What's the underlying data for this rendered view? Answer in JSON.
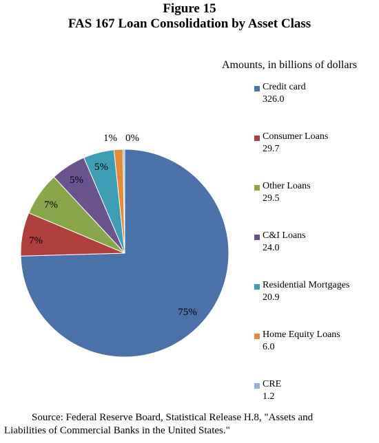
{
  "figure": {
    "number": "Figure 15",
    "title": "FAS 167 Loan Consolidation by Asset Class"
  },
  "legend": {
    "units": "Amounts, in billions of dollars"
  },
  "source": {
    "line1": "Source:  Federal Reserve Board, Statistical Release H.8, \"Assets and",
    "line2": "Liabilities of Commercial Banks in the United States.\""
  },
  "chart_data": {
    "type": "pie",
    "units": "Amounts, in billions of dollars",
    "slices": [
      {
        "label": "Credit card",
        "value": 326.0,
        "value_text": "326.0",
        "percent_label": "75%",
        "color": "#4a72a8"
      },
      {
        "label": "Consumer Loans",
        "value": 29.7,
        "value_text": "29.7",
        "percent_label": "7%",
        "color": "#b0403d"
      },
      {
        "label": "Other Loans",
        "value": 29.5,
        "value_text": "29.5",
        "percent_label": "7%",
        "color": "#8aa64a"
      },
      {
        "label": "C&I Loans",
        "value": 24.0,
        "value_text": "24.0",
        "percent_label": "5%",
        "color": "#6b538e"
      },
      {
        "label": "Residential Mortgages",
        "value": 20.9,
        "value_text": "20.9",
        "percent_label": "5%",
        "color": "#3d9eb5"
      },
      {
        "label": "Home Equity Loans",
        "value": 6.0,
        "value_text": "6.0",
        "percent_label": "1%",
        "color": "#e4893a"
      },
      {
        "label": "CRE",
        "value": 1.2,
        "value_text": "1.2",
        "percent_label": "0%",
        "color": "#95b3d7"
      }
    ],
    "start_angle": "top, counterclockwise from Credit card",
    "legend_position": "right"
  }
}
